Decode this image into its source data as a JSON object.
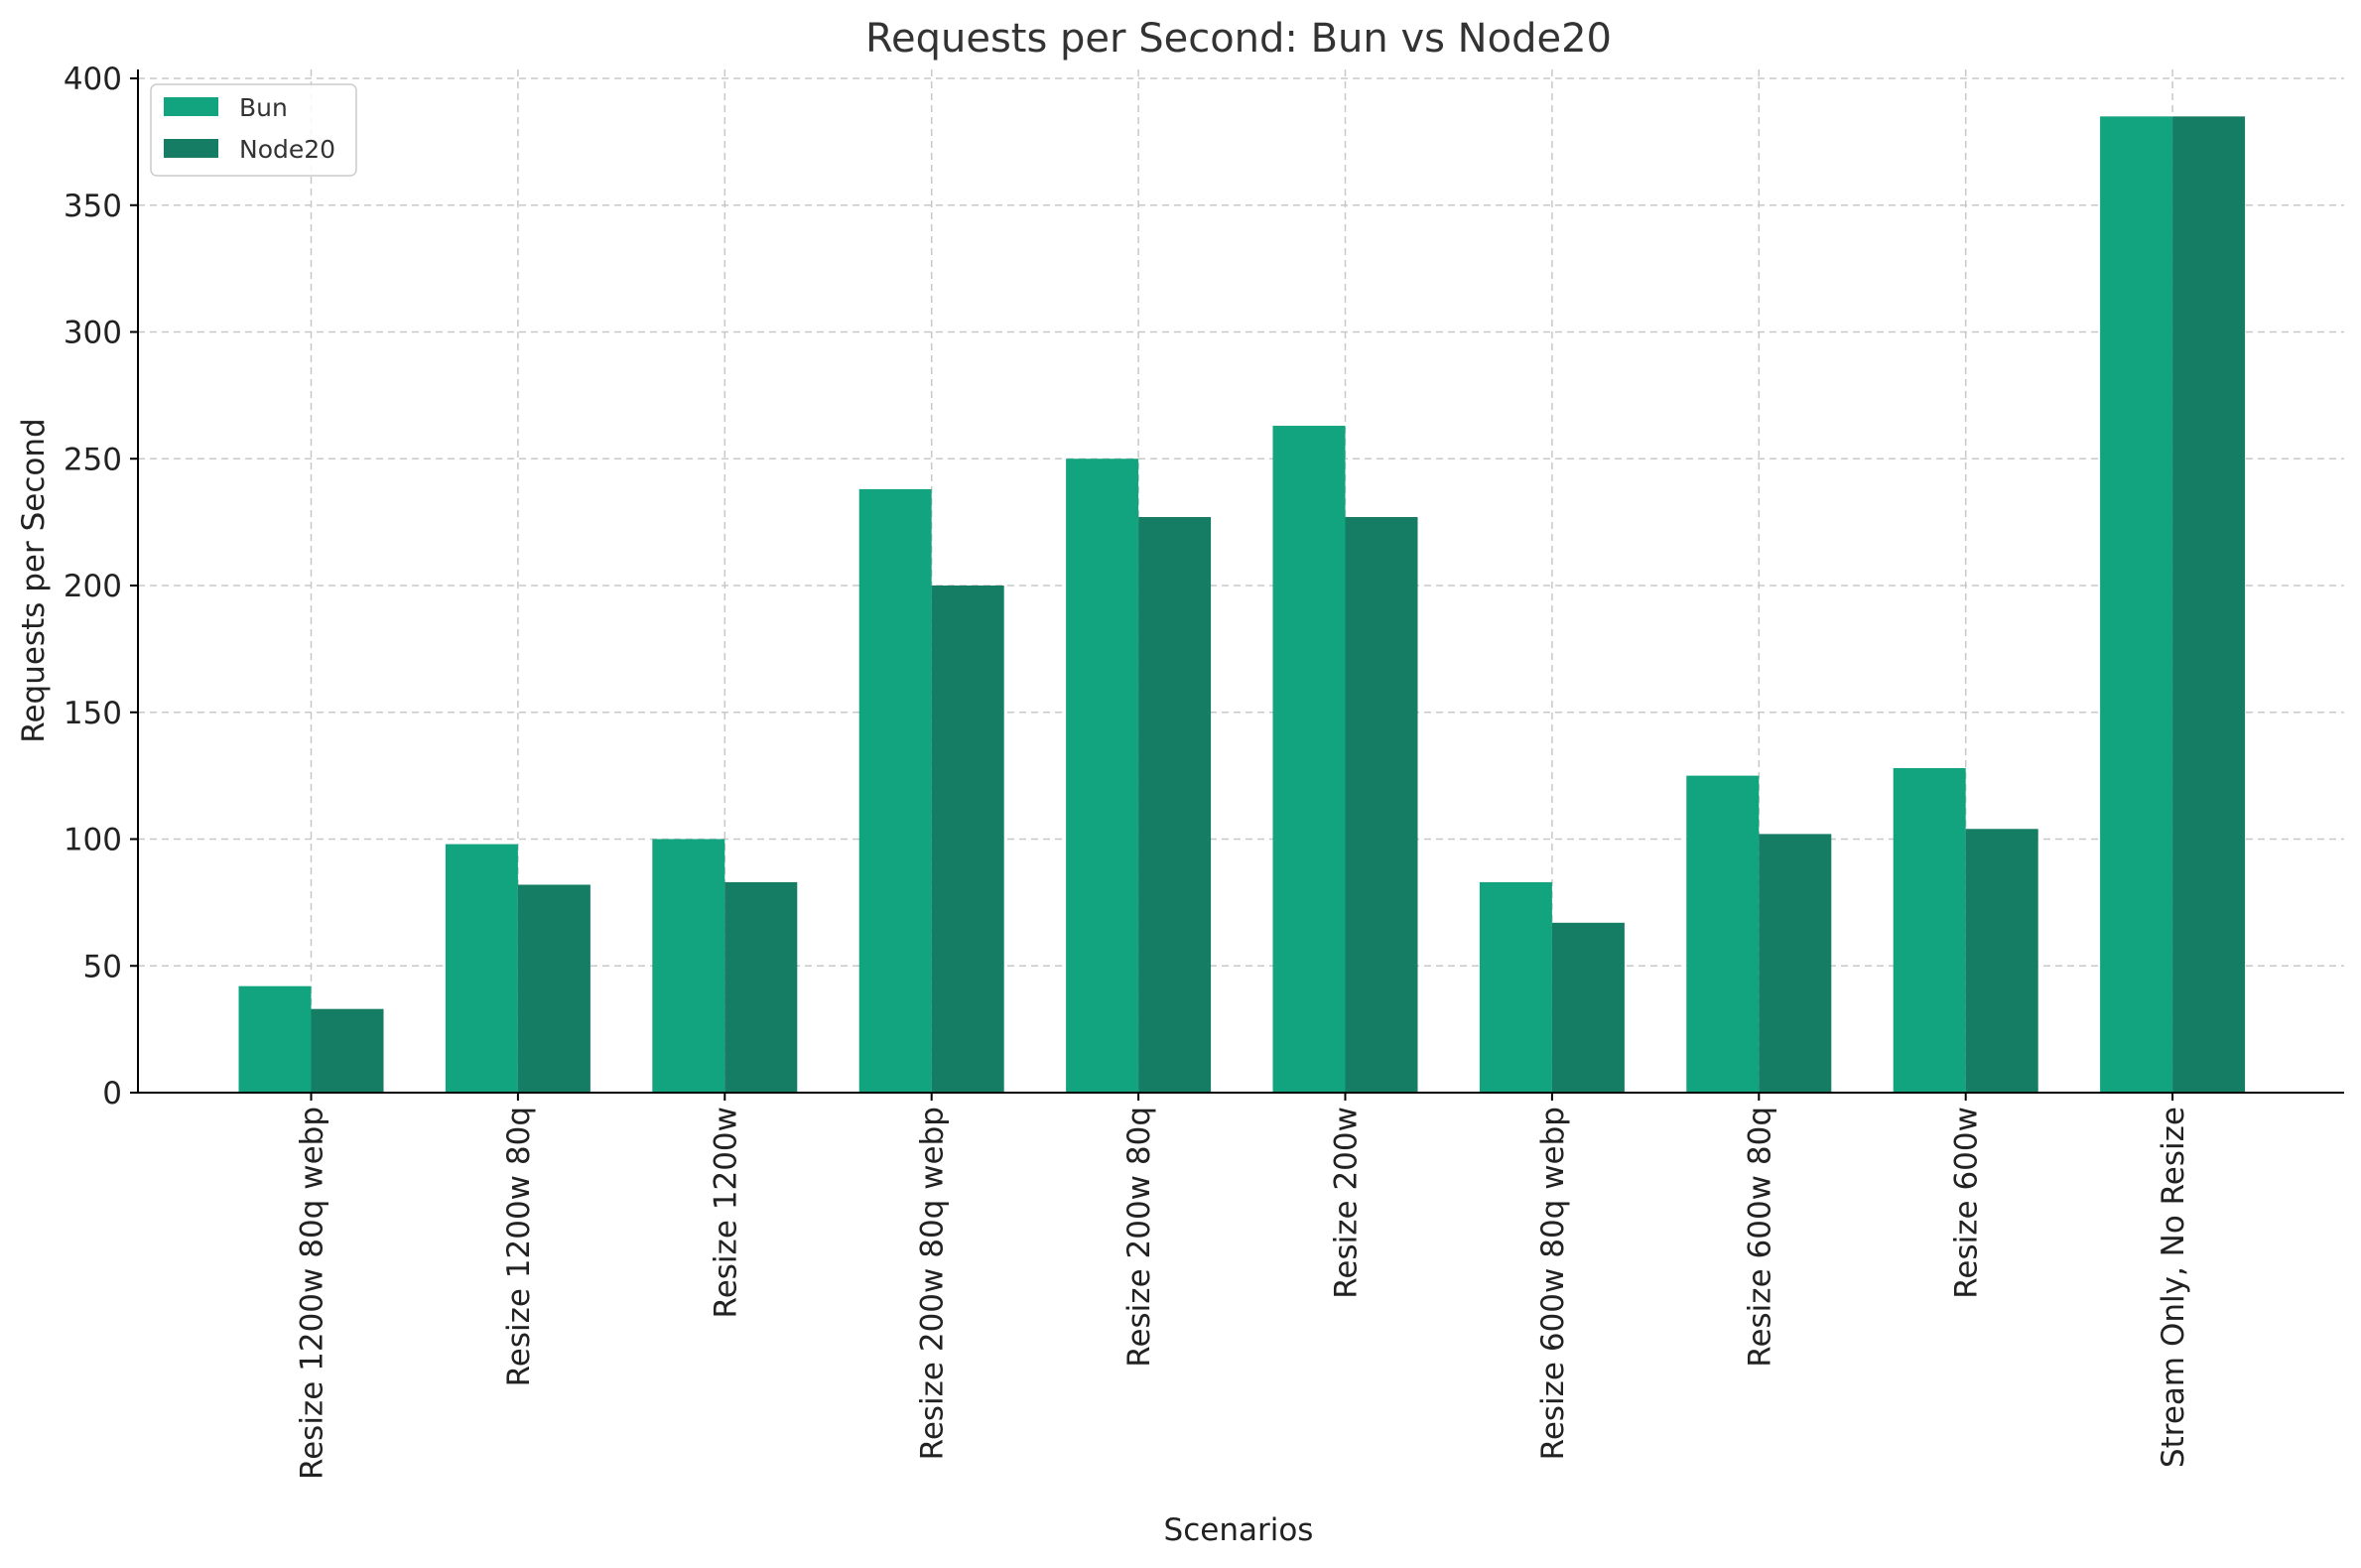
{
  "chart_data": {
    "type": "bar",
    "title": "Requests per Second: Bun vs Node20",
    "xlabel": "Scenarios",
    "ylabel": "Requests per Second",
    "categories": [
      "Resize 1200w 80q webp",
      "Resize 1200w 80q",
      "Resize 1200w",
      "Resize 200w 80q webp",
      "Resize 200w 80q",
      "Resize 200w",
      "Resize 600w 80q webp",
      "Resize 600w 80q",
      "Resize 600w",
      "Stream Only, No Resize"
    ],
    "series": [
      {
        "name": "Bun",
        "color": "#12a37f",
        "values": [
          42,
          98,
          100,
          238,
          250,
          263,
          83,
          125,
          128,
          385
        ]
      },
      {
        "name": "Node20",
        "color": "#147d64",
        "values": [
          33,
          82,
          83,
          200,
          227,
          227,
          67,
          102,
          104,
          385
        ]
      }
    ],
    "ylim": [
      0,
      400
    ],
    "yticks": [
      0,
      50,
      100,
      150,
      200,
      250,
      300,
      350,
      400
    ],
    "grid": true,
    "legend_position": "top-left"
  }
}
